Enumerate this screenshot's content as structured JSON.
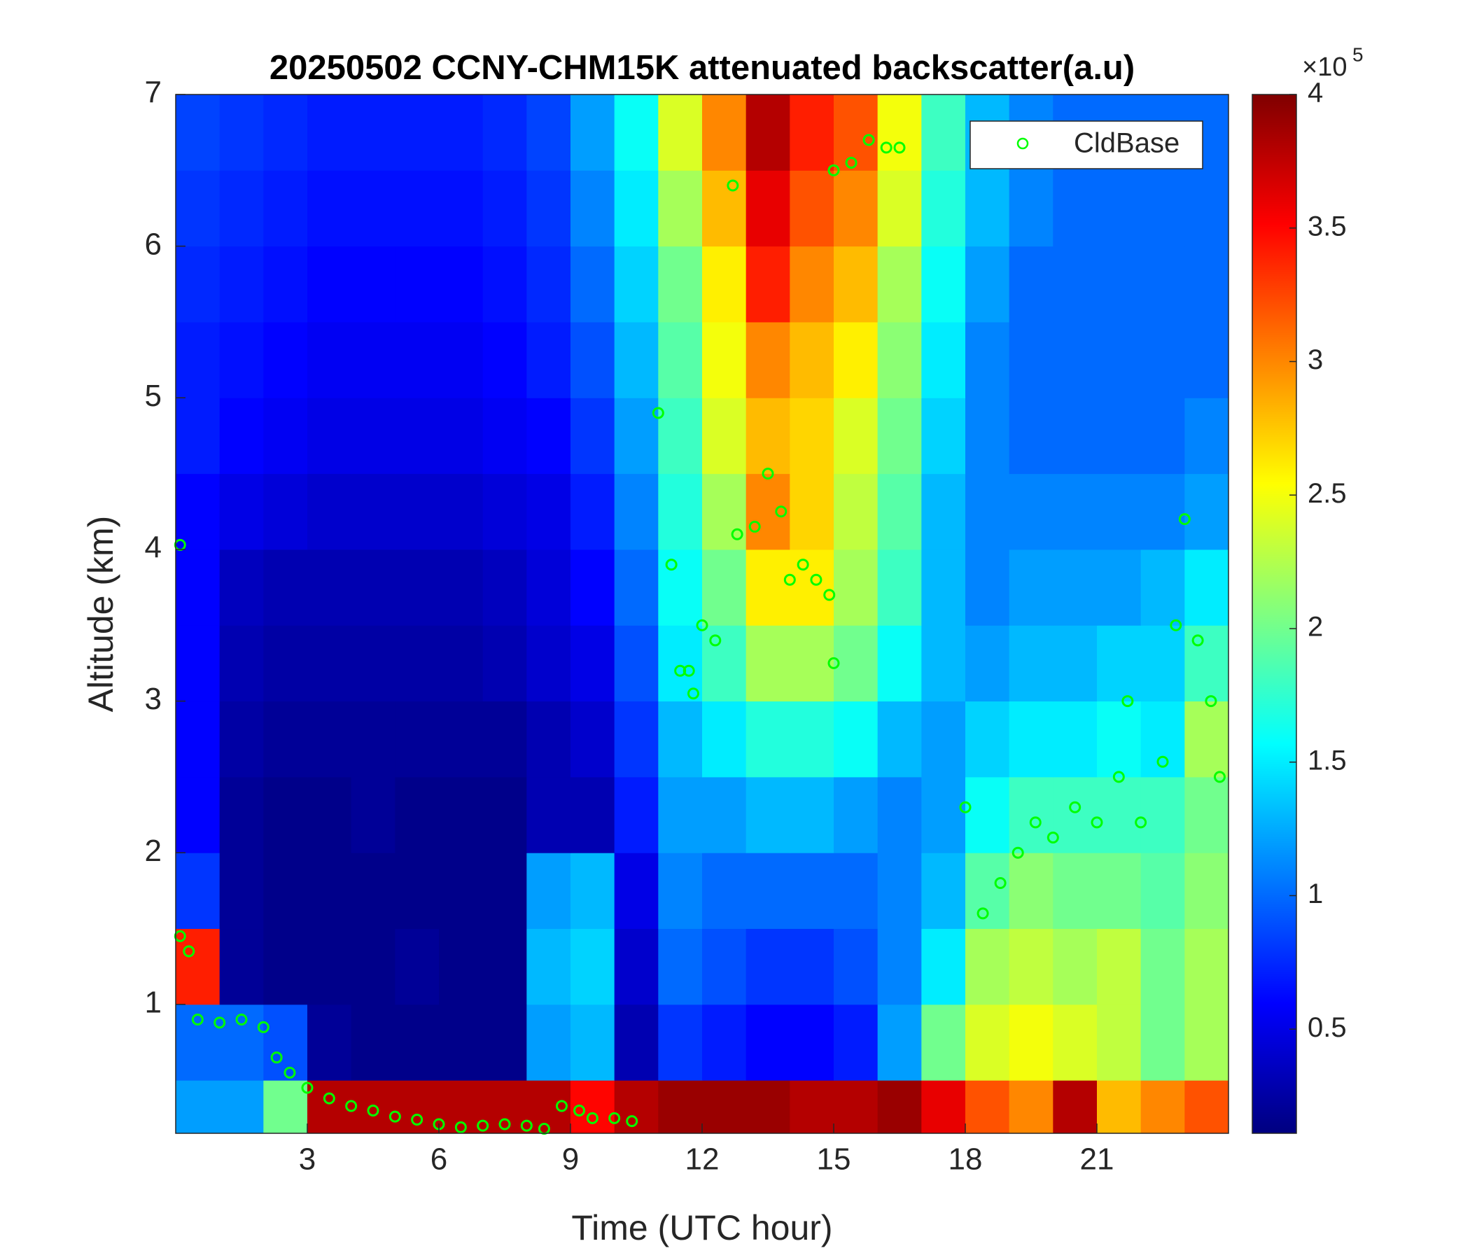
{
  "chart_data": {
    "type": "heatmap",
    "title": "20250502 CCNY-CHM15K attenuated backscatter(a.u)",
    "x_label": "Time (UTC hour)",
    "y_label": "Altitude (km)",
    "xlim": [
      0,
      24
    ],
    "ylim": [
      0.15,
      7
    ],
    "xticks": [
      3,
      6,
      9,
      12,
      15,
      18,
      21
    ],
    "yticks": [
      1,
      2,
      3,
      4,
      5,
      6,
      7
    ],
    "colormap": "jet",
    "clim": [
      0.11,
      4
    ],
    "colorbar_ticks": [
      0.5,
      1,
      1.5,
      2,
      2.5,
      3,
      3.5,
      4
    ],
    "colorbar_multiplier": "×10",
    "colorbar_exponent": 5,
    "x_edges": [
      0,
      1,
      2,
      3,
      4,
      5,
      6,
      7,
      8,
      9,
      10,
      11,
      12,
      13,
      14,
      15,
      16,
      17,
      18,
      19,
      20,
      21,
      22,
      23,
      24
    ],
    "y_edges": [
      0.15,
      0.5,
      1,
      1.5,
      2,
      2.5,
      3,
      3.5,
      4,
      4.5,
      5,
      5.5,
      6,
      6.5,
      7
    ],
    "z": [
      [
        1.2,
        1.2,
        2.0,
        3.8,
        3.8,
        3.8,
        3.8,
        3.8,
        3.8,
        3.5,
        3.8,
        3.9,
        3.9,
        3.9,
        3.8,
        3.8,
        3.9,
        3.6,
        3.2,
        3.0,
        3.8,
        2.8,
        3.0,
        3.2
      ],
      [
        1.0,
        1.0,
        0.9,
        0.2,
        0.15,
        0.15,
        0.15,
        0.15,
        1.2,
        1.3,
        0.3,
        0.8,
        0.7,
        0.6,
        0.6,
        0.7,
        1.2,
        2.0,
        2.4,
        2.5,
        2.4,
        2.3,
        2.0,
        2.2
      ],
      [
        3.4,
        0.2,
        0.15,
        0.15,
        0.15,
        0.2,
        0.15,
        0.15,
        1.3,
        1.4,
        0.4,
        1.0,
        0.9,
        0.8,
        0.8,
        0.9,
        1.1,
        1.5,
        2.2,
        2.3,
        2.2,
        2.3,
        2.0,
        2.2
      ],
      [
        0.8,
        0.2,
        0.15,
        0.15,
        0.15,
        0.15,
        0.15,
        0.15,
        1.2,
        1.3,
        0.5,
        1.1,
        1.0,
        1.0,
        1.0,
        1.0,
        1.1,
        1.3,
        1.9,
        2.1,
        2.0,
        2.0,
        1.9,
        2.1
      ],
      [
        0.6,
        0.2,
        0.15,
        0.15,
        0.2,
        0.15,
        0.15,
        0.15,
        0.3,
        0.3,
        0.7,
        1.2,
        1.2,
        1.3,
        1.3,
        1.2,
        1.1,
        1.2,
        1.6,
        1.8,
        1.8,
        1.8,
        1.8,
        2.0
      ],
      [
        0.6,
        0.25,
        0.2,
        0.2,
        0.2,
        0.2,
        0.2,
        0.2,
        0.3,
        0.4,
        0.8,
        1.3,
        1.5,
        1.7,
        1.7,
        1.6,
        1.3,
        1.2,
        1.4,
        1.5,
        1.5,
        1.6,
        1.5,
        2.2
      ],
      [
        0.6,
        0.3,
        0.25,
        0.25,
        0.25,
        0.25,
        0.25,
        0.3,
        0.4,
        0.5,
        0.9,
        1.5,
        1.8,
        2.2,
        2.2,
        2.0,
        1.6,
        1.3,
        1.2,
        1.3,
        1.3,
        1.4,
        1.4,
        1.8
      ],
      [
        0.6,
        0.35,
        0.3,
        0.3,
        0.3,
        0.3,
        0.3,
        0.35,
        0.45,
        0.6,
        1.0,
        1.6,
        2.0,
        2.6,
        2.6,
        2.2,
        1.8,
        1.3,
        1.1,
        1.2,
        1.2,
        1.2,
        1.3,
        1.5
      ],
      [
        0.6,
        0.5,
        0.45,
        0.4,
        0.4,
        0.4,
        0.4,
        0.45,
        0.5,
        0.7,
        1.1,
        1.7,
        2.2,
        3.0,
        2.7,
        2.3,
        1.9,
        1.3,
        1.1,
        1.1,
        1.1,
        1.1,
        1.1,
        1.2
      ],
      [
        0.7,
        0.6,
        0.55,
        0.5,
        0.5,
        0.5,
        0.5,
        0.55,
        0.6,
        0.8,
        1.2,
        1.8,
        2.4,
        2.8,
        2.7,
        2.4,
        2.0,
        1.4,
        1.1,
        1.0,
        1.0,
        1.0,
        1.0,
        1.1
      ],
      [
        0.7,
        0.65,
        0.6,
        0.55,
        0.55,
        0.55,
        0.55,
        0.6,
        0.7,
        0.9,
        1.3,
        1.9,
        2.5,
        3.0,
        2.8,
        2.6,
        2.1,
        1.5,
        1.1,
        1.0,
        1.0,
        1.0,
        1.0,
        1.0
      ],
      [
        0.75,
        0.7,
        0.65,
        0.6,
        0.6,
        0.6,
        0.6,
        0.65,
        0.75,
        1.0,
        1.4,
        2.0,
        2.6,
        3.4,
        3.0,
        2.8,
        2.2,
        1.6,
        1.2,
        1.0,
        1.0,
        1.0,
        1.0,
        1.0
      ],
      [
        0.8,
        0.75,
        0.7,
        0.65,
        0.65,
        0.65,
        0.65,
        0.7,
        0.8,
        1.1,
        1.5,
        2.2,
        2.8,
        3.6,
        3.2,
        3.0,
        2.4,
        1.7,
        1.3,
        1.1,
        1.0,
        1.0,
        1.0,
        1.0
      ],
      [
        0.85,
        0.8,
        0.75,
        0.7,
        0.7,
        0.7,
        0.7,
        0.75,
        0.85,
        1.2,
        1.6,
        2.4,
        3.0,
        3.8,
        3.4,
        3.2,
        2.5,
        1.8,
        1.3,
        1.1,
        1.0,
        1.0,
        1.0,
        1.0
      ]
    ],
    "series": [
      {
        "name": "CldBase",
        "type": "scatter",
        "color": "#00ff00",
        "x": [
          0.1,
          0.1,
          0.3,
          0.5,
          1,
          1.5,
          2,
          2.3,
          2.6,
          3,
          3.5,
          4,
          4.5,
          5,
          5.5,
          6,
          6.5,
          7,
          7.5,
          8,
          8.4,
          8.8,
          9.2,
          9.5,
          10,
          10.4,
          11,
          11.3,
          11.5,
          11.7,
          11.8,
          12,
          12.3,
          12.7,
          12.8,
          13.2,
          13.5,
          13.8,
          14,
          14.3,
          14.6,
          14.9,
          15,
          15,
          15.4,
          15.8,
          16.2,
          16.5,
          18,
          18.4,
          18.8,
          19.2,
          19.6,
          20,
          20.5,
          21,
          21.5,
          21.7,
          22,
          22.5,
          22.8,
          23,
          23.3,
          23.6,
          23.8
        ],
        "y": [
          4.03,
          1.45,
          1.35,
          0.9,
          0.88,
          0.9,
          0.85,
          0.65,
          0.55,
          0.45,
          0.38,
          0.33,
          0.3,
          0.26,
          0.24,
          0.21,
          0.19,
          0.2,
          0.21,
          0.2,
          0.18,
          0.33,
          0.3,
          0.25,
          0.25,
          0.23,
          4.9,
          3.9,
          3.2,
          3.2,
          3.05,
          3.5,
          3.4,
          6.4,
          4.1,
          4.15,
          4.5,
          4.25,
          3.8,
          3.9,
          3.8,
          3.7,
          3.25,
          6.5,
          6.55,
          6.7,
          6.65,
          6.65,
          2.3,
          1.6,
          1.8,
          2.0,
          2.2,
          2.1,
          2.3,
          2.2,
          2.5,
          3.0,
          2.2,
          2.6,
          3.5,
          4.2,
          3.4,
          3.0,
          2.5
        ]
      }
    ],
    "legend_position": "northeast"
  }
}
